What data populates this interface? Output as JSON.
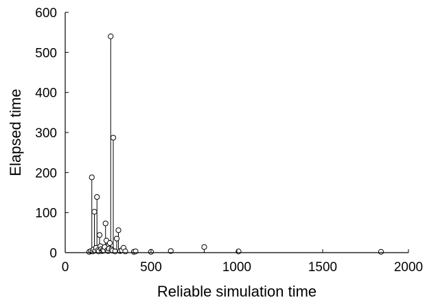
{
  "chart_data": {
    "type": "scatter",
    "style": "stem",
    "marker": "circle",
    "xlabel": "Reliable simulation time",
    "ylabel": "Elapsed time",
    "xlim": [
      0,
      2000
    ],
    "ylim": [
      0,
      600
    ],
    "xticks": [
      "0",
      "500",
      "1000",
      "1500",
      "2000"
    ],
    "yticks": [
      "0",
      "100",
      "200",
      "300",
      "400",
      "500",
      "600"
    ],
    "grid": false,
    "series": [
      {
        "points": [
          {
            "x": 140,
            "y": 2
          },
          {
            "x": 150,
            "y": 4
          },
          {
            "x": 155,
            "y": 188
          },
          {
            "x": 160,
            "y": 3
          },
          {
            "x": 165,
            "y": 8
          },
          {
            "x": 170,
            "y": 102
          },
          {
            "x": 175,
            "y": 5
          },
          {
            "x": 180,
            "y": 12
          },
          {
            "x": 185,
            "y": 139
          },
          {
            "x": 190,
            "y": 6
          },
          {
            "x": 195,
            "y": 3
          },
          {
            "x": 200,
            "y": 44
          },
          {
            "x": 205,
            "y": 16
          },
          {
            "x": 210,
            "y": 9
          },
          {
            "x": 215,
            "y": 4
          },
          {
            "x": 220,
            "y": 7
          },
          {
            "x": 225,
            "y": 5
          },
          {
            "x": 230,
            "y": 14
          },
          {
            "x": 235,
            "y": 73
          },
          {
            "x": 240,
            "y": 30
          },
          {
            "x": 245,
            "y": 6
          },
          {
            "x": 250,
            "y": 4
          },
          {
            "x": 255,
            "y": 10
          },
          {
            "x": 260,
            "y": 24
          },
          {
            "x": 265,
            "y": 540
          },
          {
            "x": 270,
            "y": 8
          },
          {
            "x": 275,
            "y": 5
          },
          {
            "x": 280,
            "y": 287
          },
          {
            "x": 290,
            "y": 3
          },
          {
            "x": 300,
            "y": 35
          },
          {
            "x": 310,
            "y": 56
          },
          {
            "x": 320,
            "y": 4
          },
          {
            "x": 330,
            "y": 6
          },
          {
            "x": 340,
            "y": 12
          },
          {
            "x": 350,
            "y": 3
          },
          {
            "x": 400,
            "y": 2
          },
          {
            "x": 410,
            "y": 3
          },
          {
            "x": 500,
            "y": 2
          },
          {
            "x": 615,
            "y": 4
          },
          {
            "x": 810,
            "y": 14
          },
          {
            "x": 1010,
            "y": 3
          },
          {
            "x": 1840,
            "y": 2
          }
        ]
      }
    ]
  }
}
